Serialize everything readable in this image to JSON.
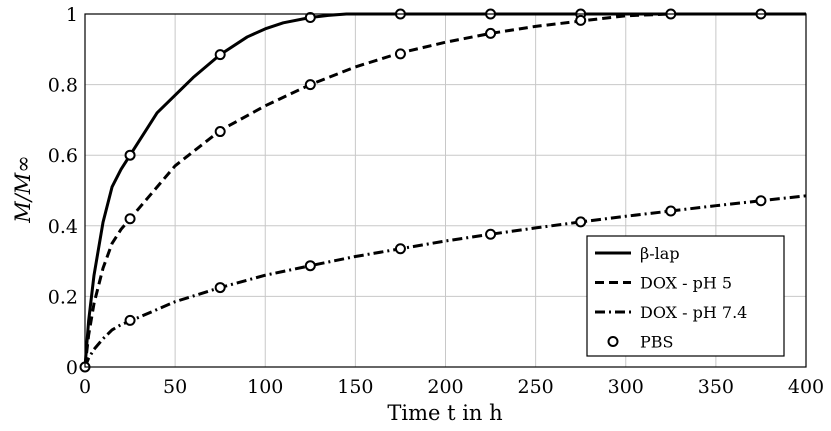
{
  "chart_data": {
    "type": "line",
    "xlabel": "Time t in h",
    "ylabel": "M/M∞",
    "xlim": [
      0,
      400
    ],
    "ylim": [
      0,
      1
    ],
    "xticks": [
      "0",
      "50",
      "100",
      "150",
      "200",
      "250",
      "300",
      "350",
      "400"
    ],
    "yticks": [
      "0",
      "0.2",
      "0.4",
      "0.6",
      "0.8",
      "1"
    ],
    "grid": true,
    "legend_position": "bottom-right",
    "series": [
      {
        "name": "β-lap",
        "style": "solid",
        "x": [
          0,
          2,
          5,
          10,
          15,
          20,
          25,
          30,
          40,
          50,
          60,
          75,
          90,
          100,
          110,
          125,
          135,
          145,
          150,
          175,
          200,
          225,
          250,
          275,
          300,
          325,
          350,
          375,
          400
        ],
        "values": [
          0,
          0.13,
          0.26,
          0.41,
          0.51,
          0.56,
          0.6,
          0.64,
          0.72,
          0.77,
          0.82,
          0.885,
          0.935,
          0.958,
          0.975,
          0.99,
          0.996,
          1,
          1,
          1,
          1,
          1,
          1,
          1,
          1,
          1,
          1,
          1,
          1
        ]
      },
      {
        "name": "DOX - pH 5",
        "style": "dashed",
        "x": [
          0,
          2,
          5,
          10,
          15,
          20,
          25,
          35,
          50,
          75,
          100,
          125,
          150,
          175,
          200,
          225,
          250,
          275,
          300,
          325,
          350,
          375,
          400
        ],
        "values": [
          0,
          0.09,
          0.18,
          0.28,
          0.35,
          0.39,
          0.42,
          0.48,
          0.57,
          0.67,
          0.74,
          0.8,
          0.85,
          0.89,
          0.92,
          0.945,
          0.965,
          0.98,
          0.995,
          1,
          1,
          1,
          1
        ]
      },
      {
        "name": "DOX - pH 7.4",
        "style": "dash-dot",
        "x": [
          0,
          2,
          5,
          10,
          15,
          20,
          25,
          50,
          75,
          100,
          125,
          150,
          175,
          200,
          225,
          250,
          275,
          300,
          325,
          350,
          375,
          400
        ],
        "values": [
          0,
          0.025,
          0.05,
          0.08,
          0.105,
          0.12,
          0.13,
          0.185,
          0.225,
          0.26,
          0.287,
          0.313,
          0.335,
          0.357,
          0.376,
          0.394,
          0.411,
          0.427,
          0.442,
          0.457,
          0.471,
          0.485
        ]
      },
      {
        "name": "PBS",
        "style": "markers",
        "x": [
          0,
          25,
          75,
          125,
          175,
          225,
          275,
          325,
          375,
          25,
          75,
          125,
          175,
          225,
          275,
          25,
          75,
          125,
          175,
          225,
          275,
          325,
          375
        ],
        "values": [
          0,
          0.6,
          0.885,
          0.99,
          1,
          1,
          1,
          1,
          1,
          0.42,
          0.667,
          0.8,
          0.887,
          0.945,
          0.982,
          0.132,
          0.225,
          0.287,
          0.335,
          0.376,
          0.411,
          0.442,
          0.471
        ]
      }
    ]
  }
}
